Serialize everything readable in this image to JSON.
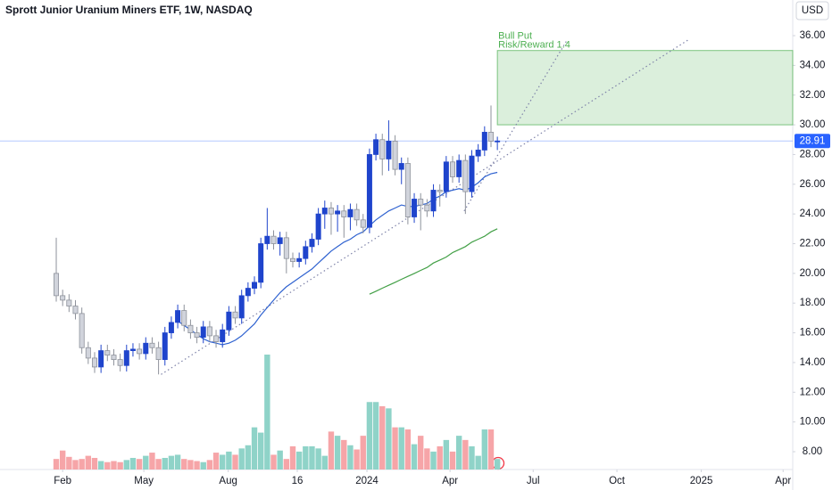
{
  "chart_data": {
    "type": "candlestick",
    "title": "Sprott Junior Uranium Miners ETF, 1W, NASDAQ",
    "currency": "USD",
    "x": [
      -1,
      0,
      1,
      2,
      3,
      4,
      5,
      6,
      7,
      8,
      9,
      10,
      11,
      12,
      13,
      14,
      15,
      16,
      17,
      18,
      19,
      20,
      21,
      22,
      23,
      24,
      25,
      26,
      27,
      28,
      29,
      30,
      31,
      32,
      33,
      34,
      35,
      36,
      37,
      38,
      39,
      40,
      41,
      42,
      43,
      44,
      45,
      46,
      47,
      48,
      49,
      50,
      51,
      52,
      53,
      54,
      55,
      56,
      57,
      58,
      59,
      60,
      61,
      62,
      63,
      64,
      65,
      66,
      67,
      68
    ],
    "open": [
      20.0,
      18.5,
      18.2,
      17.8,
      17.3,
      15.0,
      14.3,
      13.7,
      14.8,
      14.5,
      14.2,
      13.8,
      14.8,
      14.9,
      14.6,
      15.3,
      15.0,
      14.2,
      16.0,
      16.7,
      17.5,
      16.5,
      16.0,
      15.7,
      16.4,
      15.8,
      15.4,
      16.2,
      17.4,
      17.0,
      18.5,
      19.0,
      19.4,
      22.0,
      22.5,
      22.0,
      22.4,
      21.0,
      20.8,
      21.0,
      21.8,
      22.3,
      24.0,
      24.4,
      24.0,
      24.2,
      23.8,
      24.3,
      23.6,
      23.1,
      28.0,
      29.0,
      27.7,
      28.9,
      27.0,
      27.4,
      23.8,
      25.0,
      24.6,
      24.2,
      25.6,
      25.5,
      27.5,
      26.5,
      27.6,
      25.5,
      27.9,
      28.3,
      29.5,
      28.9
    ],
    "high": [
      22.4,
      18.9,
      18.6,
      18.2,
      17.7,
      15.4,
      14.7,
      15.2,
      15.2,
      14.9,
      14.6,
      15.2,
      15.3,
      15.3,
      15.7,
      15.7,
      15.4,
      16.4,
      17.1,
      17.9,
      17.9,
      16.9,
      16.4,
      16.8,
      16.8,
      16.2,
      16.6,
      17.8,
      17.8,
      18.9,
      19.4,
      19.8,
      22.4,
      24.4,
      22.9,
      22.8,
      22.8,
      21.4,
      21.4,
      22.2,
      22.7,
      24.4,
      24.9,
      24.8,
      24.6,
      24.6,
      24.7,
      24.7,
      24.0,
      28.4,
      29.4,
      29.4,
      30.3,
      29.3,
      27.8,
      27.8,
      25.4,
      25.4,
      25.0,
      26.0,
      26.0,
      27.9,
      27.9,
      28.0,
      28.0,
      28.3,
      28.7,
      29.9,
      31.3,
      29.2
    ],
    "low": [
      18.1,
      17.8,
      17.4,
      16.9,
      14.6,
      13.9,
      13.3,
      13.3,
      14.1,
      13.8,
      13.4,
      13.4,
      14.4,
      14.2,
      14.2,
      14.6,
      13.2,
      13.8,
      15.6,
      16.3,
      16.1,
      15.6,
      15.3,
      15.3,
      15.4,
      15.0,
      15.0,
      15.8,
      16.6,
      16.6,
      18.1,
      18.6,
      19.0,
      21.6,
      21.6,
      21.2,
      20.0,
      20.4,
      20.4,
      20.6,
      21.4,
      21.9,
      23.0,
      22.6,
      22.8,
      22.4,
      22.9,
      23.2,
      22.7,
      22.7,
      27.6,
      26.6,
      26.9,
      26.6,
      26.0,
      23.3,
      23.4,
      22.9,
      23.8,
      23.8,
      24.5,
      25.1,
      26.1,
      26.1,
      24.0,
      25.1,
      27.5,
      27.9,
      28.5,
      28.3
    ],
    "close": [
      18.5,
      18.2,
      17.8,
      17.3,
      15.0,
      14.3,
      13.7,
      14.8,
      14.5,
      14.2,
      13.8,
      14.8,
      14.9,
      14.6,
      15.3,
      15.0,
      14.2,
      16.0,
      16.7,
      17.5,
      16.5,
      16.0,
      15.7,
      16.4,
      15.8,
      15.4,
      16.2,
      17.4,
      17.0,
      18.5,
      19.0,
      19.4,
      22.0,
      22.5,
      22.0,
      22.4,
      21.0,
      20.8,
      21.0,
      21.8,
      22.3,
      24.0,
      24.4,
      24.0,
      24.2,
      23.8,
      24.3,
      23.6,
      23.1,
      28.0,
      29.0,
      27.7,
      28.9,
      27.0,
      27.4,
      23.8,
      25.0,
      24.6,
      24.2,
      25.6,
      25.5,
      27.5,
      26.5,
      27.6,
      25.5,
      27.9,
      28.3,
      29.5,
      28.9,
      28.91
    ],
    "volume": [
      10,
      18,
      12,
      9,
      10,
      13,
      11,
      8,
      7,
      8,
      7,
      9,
      11,
      10,
      13,
      16,
      10,
      11,
      13,
      14,
      10,
      9,
      8,
      7,
      9,
      16,
      14,
      17,
      14,
      20,
      23,
      40,
      35,
      109,
      14,
      18,
      10,
      22,
      17,
      22,
      22,
      20,
      13,
      36,
      32,
      28,
      23,
      19,
      32,
      64,
      64,
      60,
      58,
      40,
      40,
      38,
      24,
      32,
      20,
      17,
      22,
      28,
      17,
      32,
      28,
      22,
      13,
      38,
      38,
      10
    ],
    "up_color": "#1f44cc",
    "down_color": "#d1d4dc",
    "down_border": "#8e929b",
    "volume_up_color": "#8fd3c8",
    "volume_down_color": "#f6a5a8",
    "series": [
      {
        "color": "#2f62d0",
        "values": [
          null,
          null,
          null,
          null,
          null,
          null,
          null,
          null,
          null,
          null,
          null,
          null,
          null,
          null,
          null,
          null,
          null,
          null,
          null,
          16.8,
          16.5,
          16.2,
          15.9,
          15.6,
          15.4,
          15.3,
          15.2,
          15.3,
          15.5,
          15.8,
          16.2,
          16.6,
          17.2,
          17.7,
          18.2,
          18.7,
          19.1,
          19.4,
          19.7,
          20.0,
          20.3,
          20.7,
          21.1,
          21.5,
          21.8,
          22.1,
          22.3,
          22.6,
          22.8,
          23.2,
          23.6,
          23.9,
          24.2,
          24.4,
          24.6,
          24.5,
          24.5,
          24.6,
          24.7,
          25.0,
          25.2,
          25.5,
          25.6,
          25.7,
          25.6,
          25.8,
          26.1,
          26.5,
          26.7,
          26.8
        ]
      },
      {
        "color": "#43a047",
        "values": [
          null,
          null,
          null,
          null,
          null,
          null,
          null,
          null,
          null,
          null,
          null,
          null,
          null,
          null,
          null,
          null,
          null,
          null,
          null,
          null,
          null,
          null,
          null,
          null,
          null,
          null,
          null,
          null,
          null,
          null,
          null,
          null,
          null,
          null,
          null,
          null,
          null,
          null,
          null,
          null,
          null,
          null,
          null,
          null,
          null,
          null,
          null,
          null,
          null,
          18.6,
          18.8,
          19.0,
          19.2,
          19.4,
          19.6,
          19.8,
          20.0,
          20.2,
          20.4,
          20.7,
          20.9,
          21.1,
          21.4,
          21.6,
          21.8,
          22.1,
          22.3,
          22.5,
          22.8,
          23.0
        ]
      }
    ],
    "trendlines": [
      {
        "x": [
          15.4,
          97.8
        ],
        "y": [
          13.2,
          35.7
        ]
      },
      {
        "x": [
          62.8,
          78.9
        ],
        "y": [
          24.2,
          35.7
        ]
      }
    ],
    "trendline_color": "#7e82a8",
    "position": {
      "label": "Bull Put",
      "note": "Risk/Reward 1.4",
      "x": 68,
      "ylim": [
        30,
        35
      ],
      "color": "#4caf50"
    },
    "last_color": "#2962ff",
    "xlim": [
      -9.8,
      114.2
    ],
    "xticks": [
      {
        "value": 0,
        "label": "Feb"
      },
      {
        "value": 12.7,
        "label": "May"
      },
      {
        "value": 25.9,
        "label": "Aug"
      },
      {
        "value": 36.7,
        "label": "16"
      },
      {
        "value": 47.6,
        "label": "2024"
      },
      {
        "value": 60.6,
        "label": "Apr"
      },
      {
        "value": 73.6,
        "label": "Jul"
      },
      {
        "value": 86.7,
        "label": "Oct"
      },
      {
        "value": 99.9,
        "label": "2025"
      },
      {
        "value": 112.7,
        "label": "Apr"
      }
    ],
    "ylim": [
      6.8,
      38.4
    ],
    "yticks": [
      {
        "value": 8,
        "label": "8.00"
      },
      {
        "value": 10,
        "label": "10.00"
      },
      {
        "value": 12,
        "label": "12.00"
      },
      {
        "value": 14,
        "label": "14.00"
      },
      {
        "value": 16,
        "label": "16.00"
      },
      {
        "value": 18,
        "label": "18.00"
      },
      {
        "value": 20,
        "label": "20.00"
      },
      {
        "value": 22,
        "label": "22.00"
      },
      {
        "value": 24,
        "label": "24.00"
      },
      {
        "value": 26,
        "label": "26.00"
      },
      {
        "value": 28,
        "label": "28.00"
      },
      {
        "value": 30,
        "label": "30.00"
      },
      {
        "value": 32,
        "label": "32.00"
      },
      {
        "value": 34,
        "label": "34.00"
      },
      {
        "value": 36,
        "label": "36.00"
      }
    ],
    "grid": false
  }
}
